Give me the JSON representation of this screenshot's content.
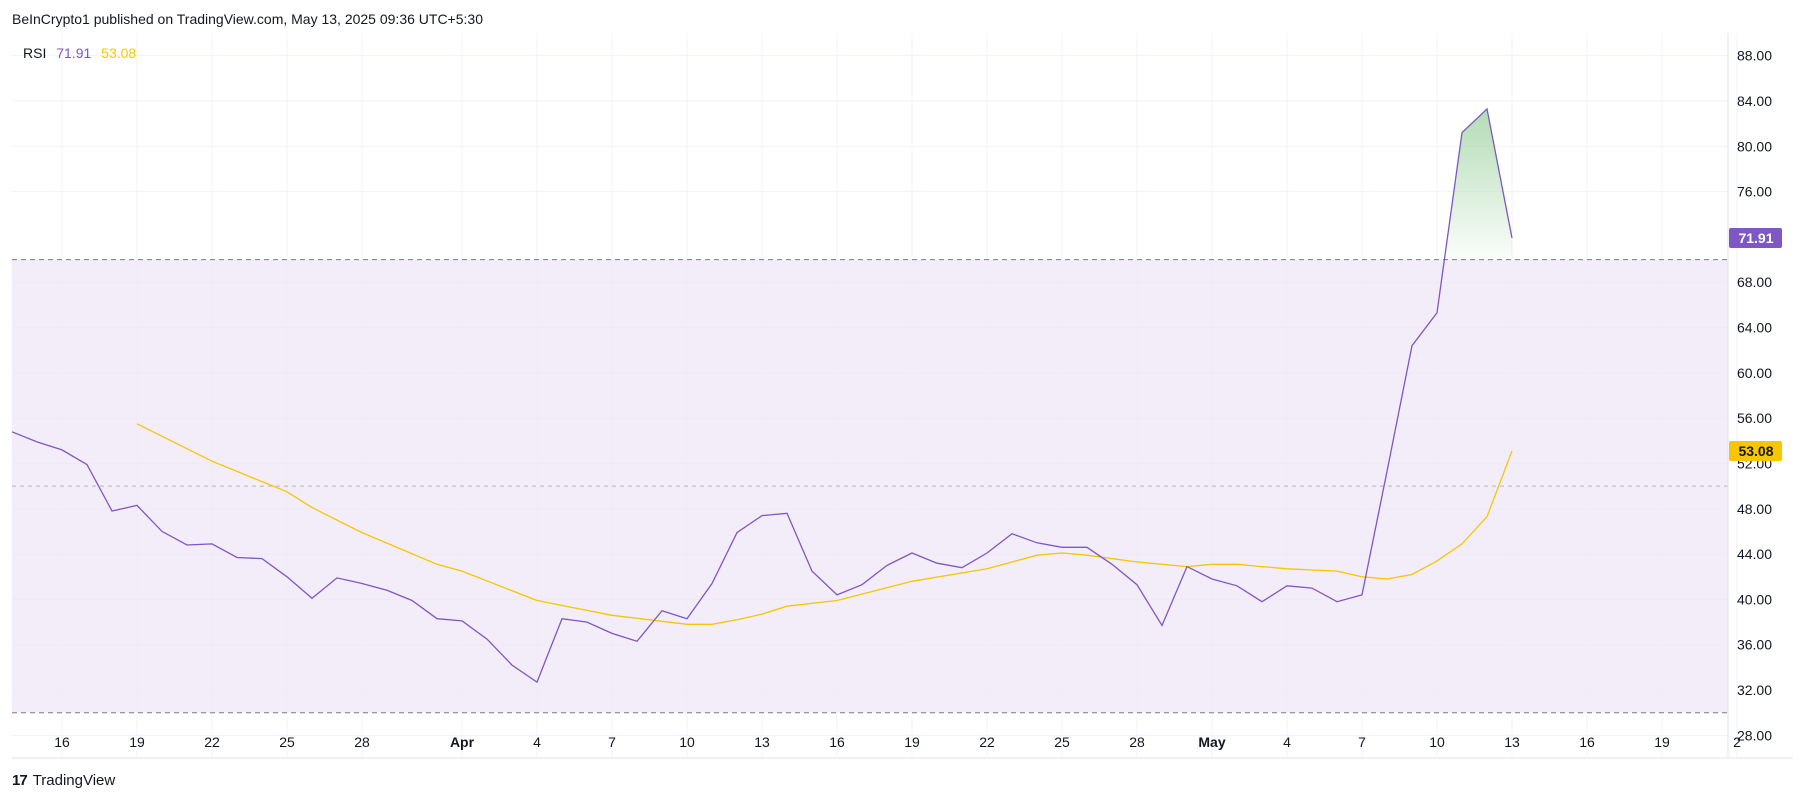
{
  "header": {
    "published_text": "BeInCrypto1 published on TradingView.com, May 13, 2025 09:36 UTC+5:30"
  },
  "footer": {
    "logo_icon": "tradingview-logo-icon",
    "logo_text": "TradingView",
    "logo_glyph": "17"
  },
  "colors": {
    "rsi": "#7e57c2",
    "ma": "#f6c700",
    "band": "#ede7f6",
    "grid": "#f0f3fa",
    "axis_text": "#131722",
    "fill": "#a5d6a7"
  },
  "chart_data": {
    "type": "line",
    "indicator": "RSI",
    "legend": {
      "label": "RSI",
      "rsi_value": "71.91",
      "ma_value": "53.08"
    },
    "yaxis": {
      "min": 26,
      "max": 90,
      "ticks": [
        "28.00",
        "32.00",
        "36.00",
        "40.00",
        "44.00",
        "48.00",
        "52.00",
        "56.00",
        "60.00",
        "64.00",
        "68.00",
        "76.00",
        "80.00",
        "84.00",
        "88.00"
      ]
    },
    "xaxis": {
      "ticks": [
        {
          "label": "16",
          "date": "2025-03-16"
        },
        {
          "label": "19",
          "date": "2025-03-19"
        },
        {
          "label": "22",
          "date": "2025-03-22"
        },
        {
          "label": "25",
          "date": "2025-03-25"
        },
        {
          "label": "28",
          "date": "2025-03-28"
        },
        {
          "label": "Apr",
          "date": "2025-04-01",
          "bold": true
        },
        {
          "label": "4",
          "date": "2025-04-04"
        },
        {
          "label": "7",
          "date": "2025-04-07"
        },
        {
          "label": "10",
          "date": "2025-04-10"
        },
        {
          "label": "13",
          "date": "2025-04-13"
        },
        {
          "label": "16",
          "date": "2025-04-16"
        },
        {
          "label": "19",
          "date": "2025-04-19"
        },
        {
          "label": "22",
          "date": "2025-04-22"
        },
        {
          "label": "25",
          "date": "2025-04-25"
        },
        {
          "label": "28",
          "date": "2025-04-28"
        },
        {
          "label": "May",
          "date": "2025-05-01",
          "bold": true
        },
        {
          "label": "4",
          "date": "2025-05-04"
        },
        {
          "label": "7",
          "date": "2025-05-07"
        },
        {
          "label": "10",
          "date": "2025-05-10"
        },
        {
          "label": "13",
          "date": "2025-05-13"
        },
        {
          "label": "16",
          "date": "2025-05-16"
        },
        {
          "label": "19",
          "date": "2025-05-19"
        },
        {
          "label": "2",
          "date": "2025-05-22"
        }
      ]
    },
    "bands": {
      "upper": 70,
      "middle": 50,
      "lower": 30
    },
    "series": [
      {
        "name": "RSI",
        "last_label": "71.91",
        "x": [
          "2025-03-14",
          "2025-03-15",
          "2025-03-16",
          "2025-03-17",
          "2025-03-18",
          "2025-03-19",
          "2025-03-20",
          "2025-03-21",
          "2025-03-22",
          "2025-03-23",
          "2025-03-24",
          "2025-03-25",
          "2025-03-26",
          "2025-03-27",
          "2025-03-28",
          "2025-03-29",
          "2025-03-30",
          "2025-03-31",
          "2025-04-01",
          "2025-04-02",
          "2025-04-03",
          "2025-04-04",
          "2025-04-05",
          "2025-04-06",
          "2025-04-07",
          "2025-04-08",
          "2025-04-09",
          "2025-04-10",
          "2025-04-11",
          "2025-04-12",
          "2025-04-13",
          "2025-04-14",
          "2025-04-15",
          "2025-04-16",
          "2025-04-17",
          "2025-04-18",
          "2025-04-19",
          "2025-04-20",
          "2025-04-21",
          "2025-04-22",
          "2025-04-23",
          "2025-04-24",
          "2025-04-25",
          "2025-04-26",
          "2025-04-27",
          "2025-04-28",
          "2025-04-29",
          "2025-04-30",
          "2025-05-01",
          "2025-05-02",
          "2025-05-03",
          "2025-05-04",
          "2025-05-05",
          "2025-05-06",
          "2025-05-07",
          "2025-05-08",
          "2025-05-09",
          "2025-05-10",
          "2025-05-11",
          "2025-05-12",
          "2025-05-13"
        ],
        "y": [
          54.8,
          53.9,
          53.2,
          51.9,
          47.8,
          48.3,
          46.0,
          44.8,
          44.9,
          43.7,
          43.6,
          42.0,
          40.1,
          41.9,
          41.4,
          40.8,
          39.9,
          38.3,
          38.1,
          36.5,
          34.2,
          32.7,
          38.3,
          38.0,
          37.0,
          36.3,
          39.0,
          38.3,
          41.4,
          45.9,
          47.4,
          47.6,
          42.5,
          40.4,
          41.3,
          43.0,
          44.1,
          43.2,
          42.8,
          44.1,
          45.8,
          45.0,
          44.6,
          44.6,
          43.1,
          41.3,
          37.7,
          42.9,
          41.8,
          41.2,
          39.8,
          41.2,
          41.0,
          39.8,
          40.4,
          51.3,
          62.4,
          65.3,
          81.2,
          83.3,
          71.9
        ]
      },
      {
        "name": "MA",
        "last_label": "53.08",
        "x": [
          "2025-03-19",
          "2025-03-22",
          "2025-03-25",
          "2025-03-26",
          "2025-03-28",
          "2025-03-31",
          "2025-04-01",
          "2025-04-04",
          "2025-04-07",
          "2025-04-10",
          "2025-04-11",
          "2025-04-12",
          "2025-04-13",
          "2025-04-14",
          "2025-04-16",
          "2025-04-19",
          "2025-04-22",
          "2025-04-24",
          "2025-04-25",
          "2025-04-26",
          "2025-04-28",
          "2025-04-30",
          "2025-05-01",
          "2025-05-02",
          "2025-05-03",
          "2025-05-04",
          "2025-05-06",
          "2025-05-07",
          "2025-05-08",
          "2025-05-09",
          "2025-05-10",
          "2025-05-11",
          "2025-05-12",
          "2025-05-13"
        ],
        "y": [
          55.5,
          52.2,
          49.5,
          48.1,
          45.9,
          43.1,
          42.5,
          39.9,
          38.6,
          37.8,
          37.8,
          38.2,
          38.7,
          39.4,
          39.9,
          41.6,
          42.7,
          43.9,
          44.1,
          43.9,
          43.3,
          42.9,
          43.1,
          43.1,
          42.9,
          42.7,
          42.5,
          42.0,
          41.8,
          42.2,
          43.4,
          44.9,
          47.3,
          53.1
        ]
      }
    ]
  }
}
